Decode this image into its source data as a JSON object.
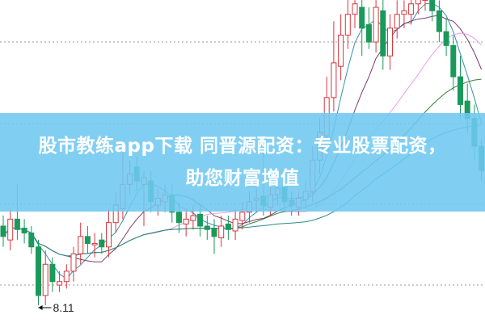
{
  "banner": {
    "line1": "股市教练app下载 同晋源配资：专业股票配资，",
    "line2": "助您财富增值"
  },
  "chart_data": {
    "type": "candlestick",
    "title": "",
    "grid": "horizontal dotted",
    "up_color": "#d9363e",
    "down_color": "#1a9a5a",
    "ma_colors": [
      "#3a8fb0",
      "#7a3d6b",
      "#e7a0e0",
      "#3d7a3a",
      "#2a8a8a"
    ],
    "low_annotation": "8.11",
    "open": [
      9.25,
      9.05,
      9.35,
      9.22,
      9.15,
      8.95,
      8.25,
      8.7,
      8.4,
      8.45,
      8.6,
      8.85,
      9.1,
      8.98,
      9.05,
      8.95,
      9.3,
      9.5,
      9.85,
      10.1,
      9.85,
      9.9,
      9.55,
      9.6,
      9.7,
      9.45,
      9.28,
      9.33,
      9.42,
      9.25,
      9.22,
      9.08,
      9.28,
      9.18,
      9.33,
      9.45,
      9.62,
      9.68,
      9.52,
      9.7,
      9.82,
      9.62,
      9.52,
      9.63,
      9.75,
      10.2,
      10.55,
      11.1,
      11.55,
      12.0,
      12.3,
      12.4,
      12.15,
      11.9,
      12.35,
      11.7,
      12.1,
      12.3,
      12.3,
      12.45,
      12.5,
      12.62,
      12.35,
      12.05,
      11.85,
      11.4,
      11.05,
      10.8,
      10.4
    ],
    "high": [
      9.4,
      9.5,
      9.85,
      9.35,
      9.25,
      9.05,
      8.9,
      8.8,
      8.6,
      8.7,
      8.95,
      9.3,
      9.25,
      9.15,
      9.15,
      9.5,
      9.75,
      10.3,
      10.2,
      10.25,
      10.05,
      10.05,
      9.8,
      9.85,
      9.85,
      9.6,
      9.5,
      9.55,
      9.55,
      9.4,
      9.35,
      9.4,
      9.4,
      9.5,
      9.6,
      9.75,
      9.8,
      10.4,
      9.85,
      9.95,
      10.0,
      9.75,
      9.75,
      9.9,
      10.4,
      10.8,
      11.4,
      12.2,
      12.3,
      12.6,
      12.8,
      12.6,
      12.4,
      12.6,
      12.6,
      12.3,
      12.5,
      12.5,
      12.65,
      12.8,
      12.8,
      12.75,
      12.5,
      12.25,
      12.0,
      11.7,
      11.3,
      11.0,
      10.5
    ],
    "low": [
      8.95,
      8.9,
      9.05,
      9.0,
      8.85,
      8.11,
      8.11,
      8.3,
      8.3,
      8.35,
      8.45,
      8.7,
      8.85,
      8.8,
      8.85,
      8.8,
      9.15,
      9.35,
      9.7,
      9.75,
      9.25,
      9.45,
      9.4,
      9.45,
      9.3,
      9.15,
      9.1,
      9.2,
      9.1,
      9.05,
      8.85,
      8.95,
      9.05,
      9.05,
      9.2,
      9.3,
      9.45,
      9.4,
      9.4,
      9.55,
      9.45,
      9.4,
      9.4,
      9.5,
      9.6,
      10.0,
      10.4,
      10.9,
      11.35,
      11.8,
      12.1,
      11.7,
      11.8,
      11.75,
      11.5,
      11.5,
      11.95,
      12.1,
      12.15,
      12.3,
      12.35,
      12.2,
      11.9,
      11.7,
      11.2,
      10.8,
      10.6,
      10.2,
      9.9
    ],
    "close": [
      9.1,
      9.35,
      9.2,
      9.15,
      8.95,
      8.25,
      8.7,
      8.45,
      8.45,
      8.6,
      8.85,
      9.1,
      9.0,
      9.0,
      8.95,
      9.3,
      9.55,
      9.85,
      10.0,
      9.9,
      9.95,
      9.6,
      9.65,
      9.7,
      9.45,
      9.3,
      9.35,
      9.4,
      9.25,
      9.2,
      9.1,
      9.25,
      9.2,
      9.35,
      9.45,
      9.6,
      9.65,
      9.55,
      9.7,
      9.8,
      9.6,
      9.55,
      9.65,
      9.75,
      10.2,
      10.6,
      11.1,
      11.6,
      12.0,
      12.3,
      12.45,
      12.1,
      11.9,
      12.4,
      11.7,
      12.1,
      12.3,
      12.35,
      12.45,
      12.55,
      12.6,
      12.35,
      12.05,
      11.85,
      11.4,
      11.0,
      10.8,
      10.4,
      10.05
    ]
  }
}
